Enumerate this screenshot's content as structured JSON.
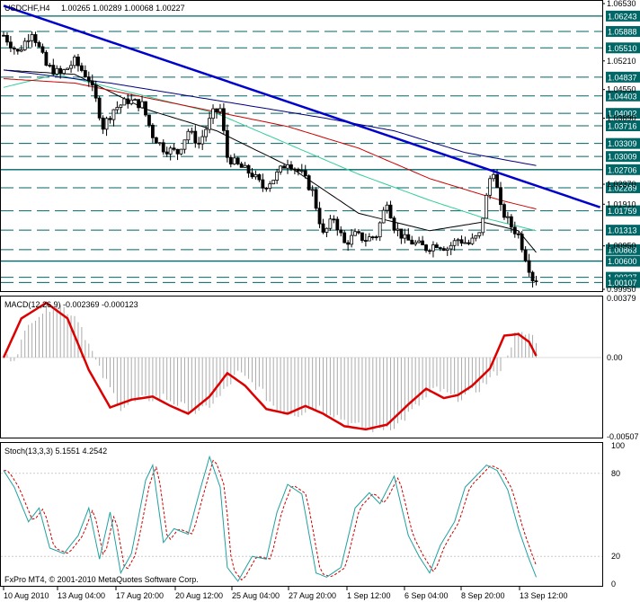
{
  "header": {
    "symbol_tf": "USDCHF,H4",
    "ohlc": "1.00265 1.00289 1.00068 1.00227"
  },
  "macd_label": "MACD(12,26,9) -0.002369 -0.000123",
  "stoch_label": "Stoch(13,3,3) 5.1551 4.2542",
  "copyright": "FxPro MT4, © 2001-2010 MetaQuotes Software Corp.",
  "colors": {
    "background": "#ffffff",
    "candle": "#000000",
    "trendline": "#0000cc",
    "ma_fast": "#000000",
    "ma_mid": "#33cc99",
    "ma_slow": "#cc0000",
    "ma_slower": "#000080",
    "level_line": "#006666",
    "level_tag_bg": "#006666",
    "macd_line": "#dd0000",
    "macd_hist": "#aaaaaa",
    "stoch_main": "#20a0a0",
    "stoch_signal": "#cc0000"
  },
  "chart_data": [
    {
      "type": "candlestick",
      "title": "USDCHF,H4",
      "ylim": [
        0.9995,
        1.0653
      ],
      "price_ticks": [
        {
          "label": "1.06530",
          "value": 1.0653
        },
        {
          "label": "1.05210",
          "value": 1.0521
        },
        {
          "label": "1.04550",
          "value": 1.0455
        },
        {
          "label": "1.03890",
          "value": 1.0389
        },
        {
          "label": "1.02370",
          "value": 1.0237
        },
        {
          "label": "1.01910",
          "value": 1.0191
        },
        {
          "label": "1.00950",
          "value": 1.0095
        },
        {
          "label": "0.99950",
          "value": 0.9995
        }
      ],
      "levels": [
        {
          "label": "1.06243",
          "value": 1.06243,
          "solid": true
        },
        {
          "label": "1.05888",
          "value": 1.05888,
          "solid": false
        },
        {
          "label": "1.05510",
          "value": 1.0551,
          "solid": false
        },
        {
          "label": "1.04837",
          "value": 1.04837,
          "solid": false
        },
        {
          "label": "1.04403",
          "value": 1.04403,
          "solid": false
        },
        {
          "label": "1.04002",
          "value": 1.04002,
          "solid": false
        },
        {
          "label": "1.03716",
          "value": 1.03716,
          "solid": false
        },
        {
          "label": "1.03309",
          "value": 1.03309,
          "solid": false
        },
        {
          "label": "1.03009",
          "value": 1.03009,
          "solid": false
        },
        {
          "label": "1.02706",
          "value": 1.02706,
          "solid": true
        },
        {
          "label": "1.02289",
          "value": 1.02289,
          "solid": false
        },
        {
          "label": "1.01759",
          "value": 1.01759,
          "solid": false
        },
        {
          "label": "1.01313",
          "value": 1.01313,
          "solid": false
        },
        {
          "label": "1.00863",
          "value": 1.00863,
          "solid": false
        },
        {
          "label": "1.00600",
          "value": 1.006,
          "solid": true
        },
        {
          "label": "1.00227",
          "value": 1.00227,
          "solid": false
        },
        {
          "label": "1.00107",
          "value": 1.00107,
          "solid": false
        }
      ],
      "x_ticks": [
        "10 Aug 2010",
        "13 Aug 04:00",
        "17 Aug 20:00",
        "20 Aug 12:00",
        "25 Aug 04:00",
        "27 Aug 20:00",
        "1 Sep 12:00",
        "6 Sep 04:00",
        "8 Sep 20:00",
        "13 Sep 12:00"
      ],
      "close_anchors": [
        [
          0,
          1.058
        ],
        [
          4,
          1.054
        ],
        [
          8,
          1.059
        ],
        [
          12,
          1.051
        ],
        [
          16,
          1.049
        ],
        [
          20,
          1.052
        ],
        [
          24,
          1.048
        ],
        [
          26,
          1.043
        ],
        [
          28,
          1.037
        ],
        [
          31,
          1.041
        ],
        [
          35,
          1.043
        ],
        [
          39,
          1.042
        ],
        [
          42,
          1.035
        ],
        [
          45,
          1.032
        ],
        [
          49,
          1.031
        ],
        [
          52,
          1.036
        ],
        [
          55,
          1.033
        ],
        [
          59,
          1.04
        ],
        [
          61,
          1.041
        ],
        [
          63,
          1.03
        ],
        [
          66,
          1.028
        ],
        [
          70,
          1.026
        ],
        [
          73,
          1.023
        ],
        [
          76,
          1.025
        ],
        [
          80,
          1.029
        ],
        [
          84,
          1.026
        ],
        [
          87,
          1.022
        ],
        [
          90,
          1.012
        ],
        [
          93,
          1.016
        ],
        [
          96,
          1.01
        ],
        [
          99,
          1.012
        ],
        [
          102,
          1.011
        ],
        [
          105,
          1.012
        ],
        [
          108,
          1.02
        ],
        [
          110,
          1.014
        ],
        [
          113,
          1.011
        ],
        [
          116,
          1.01
        ],
        [
          119,
          1.009
        ],
        [
          122,
          1.01
        ],
        [
          125,
          1.009
        ],
        [
          128,
          1.011
        ],
        [
          131,
          1.01
        ],
        [
          134,
          1.012
        ],
        [
          137,
          1.025
        ],
        [
          138,
          1.027
        ],
        [
          140,
          1.018
        ],
        [
          143,
          1.014
        ],
        [
          145,
          1.012
        ],
        [
          147,
          1.007
        ],
        [
          149,
          1.002
        ]
      ],
      "trendline": [
        [
          1.0648,
          0
        ],
        [
          1.0184,
          168
        ]
      ],
      "ma_anchors": {
        "ma_fast": [
          [
            0,
            1.05
          ],
          [
            20,
            1.049
          ],
          [
            40,
            1.041
          ],
          [
            60,
            1.036
          ],
          [
            80,
            1.028
          ],
          [
            100,
            1.017
          ],
          [
            120,
            1.013
          ],
          [
            135,
            1.015
          ],
          [
            145,
            1.013
          ],
          [
            150,
            1.008
          ]
        ],
        "ma_mid": [
          [
            0,
            1.046
          ],
          [
            15,
            1.049
          ],
          [
            40,
            1.044
          ],
          [
            60,
            1.04
          ],
          [
            80,
            1.033
          ],
          [
            100,
            1.026
          ],
          [
            120,
            1.02
          ],
          [
            135,
            1.016
          ],
          [
            150,
            1.013
          ]
        ],
        "ma_slow": [
          [
            0,
            1.048
          ],
          [
            20,
            1.047
          ],
          [
            50,
            1.042
          ],
          [
            80,
            1.037
          ],
          [
            100,
            1.032
          ],
          [
            120,
            1.025
          ],
          [
            140,
            1.02
          ],
          [
            150,
            1.018
          ]
        ],
        "ma_slower": [
          [
            0,
            1.05
          ],
          [
            30,
            1.047
          ],
          [
            60,
            1.043
          ],
          [
            90,
            1.039
          ],
          [
            110,
            1.036
          ],
          [
            130,
            1.031
          ],
          [
            150,
            1.028
          ]
        ]
      }
    },
    {
      "type": "line",
      "title": "MACD(12,26,9)",
      "ylim": [
        -0.00507,
        0.00379
      ],
      "ticks": [
        {
          "label": "0.00379",
          "value": 0.00379
        },
        {
          "label": "0.00",
          "value": 0.0
        },
        {
          "label": "-0.00507",
          "value": -0.00507
        }
      ],
      "signal_anchors": [
        [
          0,
          0.0
        ],
        [
          5,
          0.0025
        ],
        [
          12,
          0.0035
        ],
        [
          18,
          0.0025
        ],
        [
          24,
          -0.0008
        ],
        [
          30,
          -0.0032
        ],
        [
          36,
          -0.0027
        ],
        [
          42,
          -0.0025
        ],
        [
          47,
          -0.0031
        ],
        [
          52,
          -0.0036
        ],
        [
          58,
          -0.0025
        ],
        [
          63,
          -0.001
        ],
        [
          68,
          -0.0018
        ],
        [
          74,
          -0.0033
        ],
        [
          80,
          -0.0036
        ],
        [
          85,
          -0.0031
        ],
        [
          90,
          -0.0036
        ],
        [
          96,
          -0.0044
        ],
        [
          102,
          -0.0046
        ],
        [
          108,
          -0.0043
        ],
        [
          114,
          -0.003
        ],
        [
          119,
          -0.002
        ],
        [
          124,
          -0.0026
        ],
        [
          128,
          -0.0024
        ],
        [
          132,
          -0.0018
        ],
        [
          137,
          -0.0007
        ],
        [
          141,
          0.0014
        ],
        [
          145,
          0.0015
        ],
        [
          148,
          0.001
        ],
        [
          150,
          0.0001
        ]
      ]
    },
    {
      "type": "line",
      "title": "Stoch(13,3,3)",
      "ylim": [
        0,
        100
      ],
      "ticks": [
        {
          "label": "100",
          "value": 100
        },
        {
          "label": "80",
          "value": 80
        },
        {
          "label": "20",
          "value": 20
        },
        {
          "label": "0",
          "value": 0
        }
      ],
      "main_anchors": [
        [
          0,
          82
        ],
        [
          3,
          70
        ],
        [
          7,
          45
        ],
        [
          10,
          55
        ],
        [
          13,
          26
        ],
        [
          17,
          22
        ],
        [
          21,
          35
        ],
        [
          24,
          55
        ],
        [
          27,
          18
        ],
        [
          30,
          52
        ],
        [
          33,
          8
        ],
        [
          36,
          22
        ],
        [
          40,
          75
        ],
        [
          42,
          86
        ],
        [
          45,
          30
        ],
        [
          48,
          40
        ],
        [
          52,
          36
        ],
        [
          55,
          65
        ],
        [
          58,
          92
        ],
        [
          61,
          70
        ],
        [
          63,
          12
        ],
        [
          66,
          2
        ],
        [
          70,
          20
        ],
        [
          74,
          18
        ],
        [
          77,
          52
        ],
        [
          80,
          72
        ],
        [
          84,
          65
        ],
        [
          88,
          8
        ],
        [
          91,
          5
        ],
        [
          95,
          12
        ],
        [
          99,
          55
        ],
        [
          103,
          66
        ],
        [
          106,
          58
        ],
        [
          110,
          78
        ],
        [
          114,
          35
        ],
        [
          117,
          20
        ],
        [
          120,
          8
        ],
        [
          123,
          28
        ],
        [
          127,
          45
        ],
        [
          130,
          70
        ],
        [
          133,
          78
        ],
        [
          136,
          86
        ],
        [
          139,
          82
        ],
        [
          142,
          68
        ],
        [
          145,
          40
        ],
        [
          148,
          18
        ],
        [
          150,
          5
        ]
      ]
    }
  ]
}
